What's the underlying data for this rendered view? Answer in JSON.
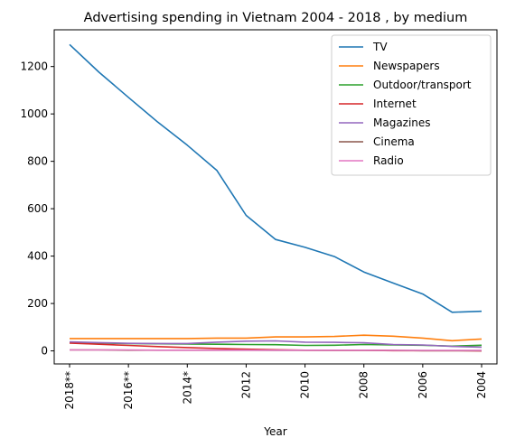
{
  "chart_data": {
    "type": "line",
    "title": "Advertising spending in Vietnam 2004 - 2018 , by medium",
    "xlabel": "Year",
    "ylabel": "",
    "categories": [
      "2018**",
      "2017**",
      "2016**",
      "2015*",
      "2014*",
      "2013",
      "2012",
      "2011",
      "2010",
      "2009",
      "2008",
      "2007",
      "2006",
      "2005",
      "2004"
    ],
    "xtick_labels": [
      "2018**",
      "2016**",
      "2014*",
      "2012",
      "2010",
      "2008",
      "2006",
      "2004"
    ],
    "yticks": [
      0,
      200,
      400,
      600,
      800,
      1000,
      1200
    ],
    "ylim": [
      -55,
      1355
    ],
    "grid": false,
    "legend_position": "top-right",
    "series": [
      {
        "name": "TV",
        "color": "#1f77b4",
        "values": [
          1293,
          1176,
          1070,
          965,
          868,
          762,
          572,
          470,
          437,
          398,
          333,
          286,
          240,
          163,
          167
        ]
      },
      {
        "name": "Newspapers",
        "color": "#ff7f0e",
        "values": [
          52,
          52,
          52,
          52,
          52,
          54,
          54,
          59,
          59,
          61,
          66,
          62,
          54,
          43,
          50
        ]
      },
      {
        "name": "Outdoor/transport",
        "color": "#2ca02c",
        "values": [
          35,
          33,
          31,
          30,
          29,
          28,
          27,
          26,
          23,
          24,
          27,
          25,
          24,
          20,
          24
        ]
      },
      {
        "name": "Internet",
        "color": "#d62728",
        "values": [
          33,
          28,
          23,
          18,
          14,
          10,
          7,
          5,
          3,
          2,
          2,
          1,
          1,
          1,
          0
        ]
      },
      {
        "name": "Magazines",
        "color": "#9467bd",
        "values": [
          38,
          35,
          32,
          31,
          31,
          37,
          41,
          42,
          37,
          36,
          34,
          27,
          25,
          19,
          16
        ]
      },
      {
        "name": "Cinema",
        "color": "#8c564b",
        "values": [
          4,
          4,
          3,
          3,
          3,
          3,
          3,
          2,
          2,
          2,
          2,
          2,
          1,
          1,
          1
        ]
      },
      {
        "name": "Radio",
        "color": "#e377c2",
        "values": [
          4,
          4,
          4,
          3,
          3,
          3,
          3,
          3,
          3,
          3,
          3,
          2,
          2,
          2,
          2
        ]
      }
    ]
  }
}
